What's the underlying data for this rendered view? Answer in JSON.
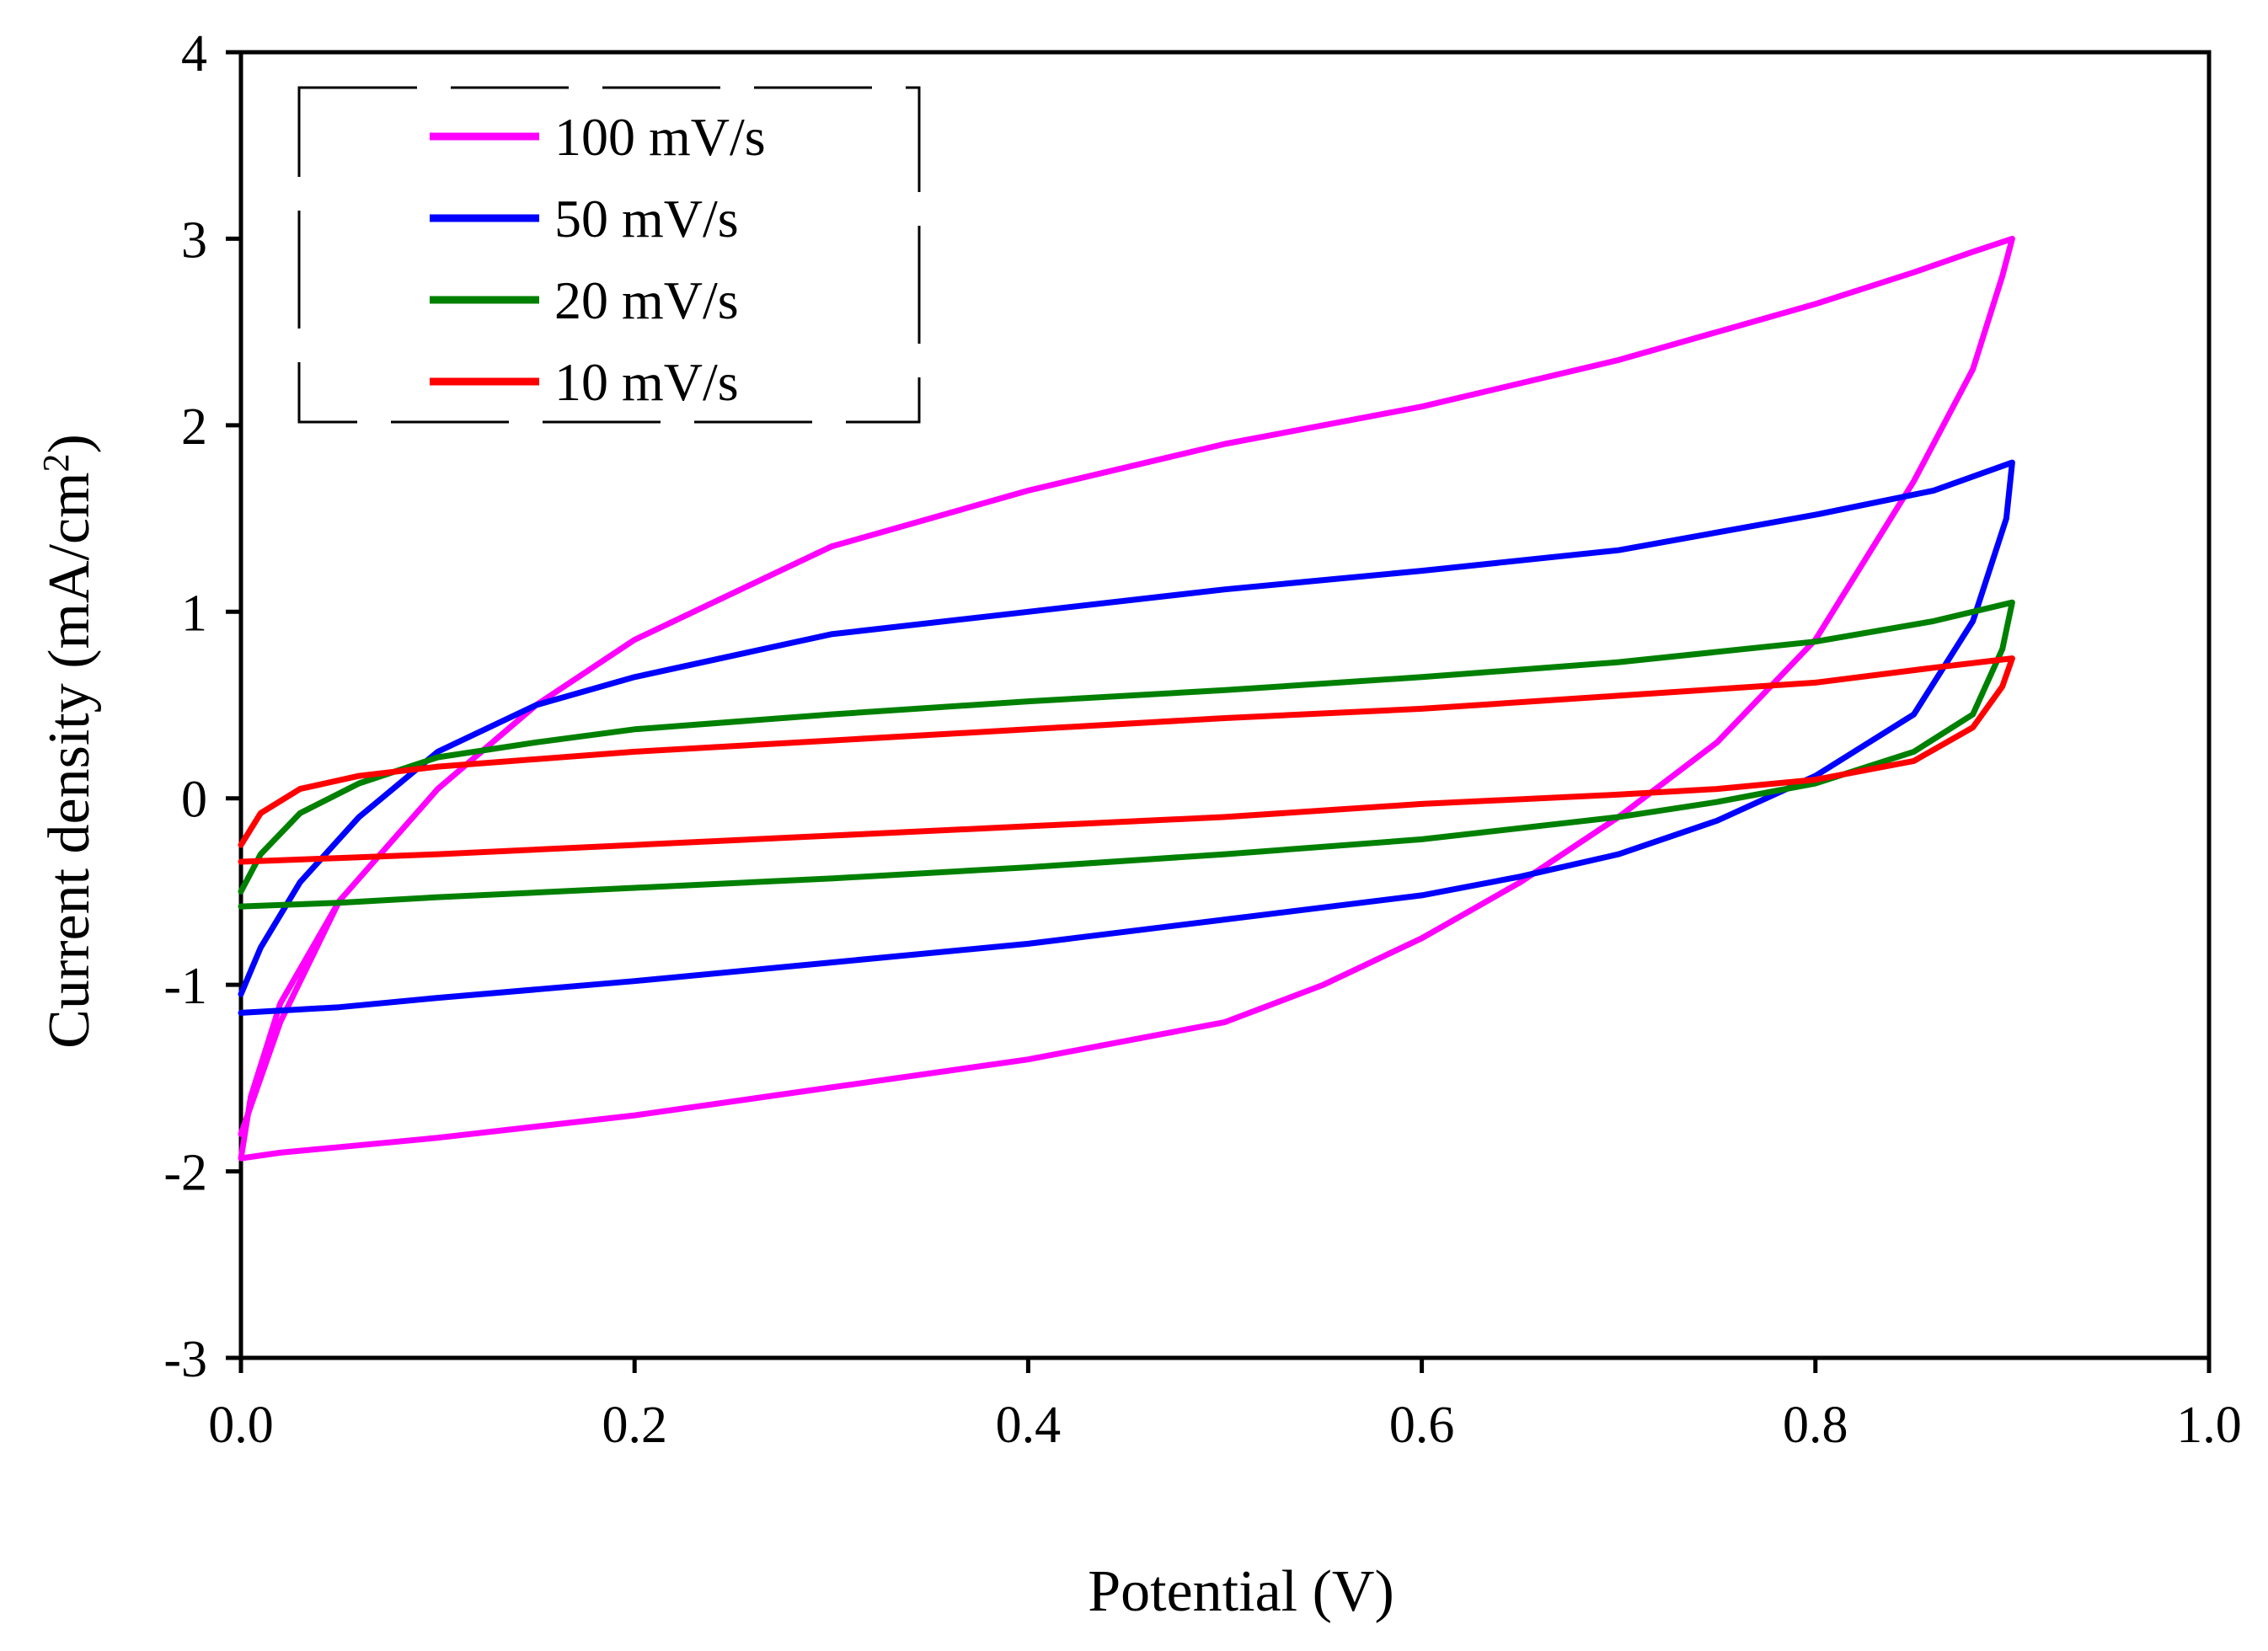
{
  "chart_data": {
    "type": "line",
    "xlabel": "Potential (V)",
    "ylabel": "Current density (mA/cm",
    "ylabel_superscript": "2",
    "ylabel_suffix": ")",
    "xlim": [
      0.0,
      1.0
    ],
    "ylim": [
      -3,
      4
    ],
    "x_ticks": [
      "0.0",
      "0.2",
      "0.4",
      "0.6",
      "0.8",
      "1.0"
    ],
    "y_ticks": [
      "4",
      "3",
      "2",
      "1",
      "0",
      "-1",
      "-2",
      "-3"
    ],
    "grid": false,
    "legend_position": "top-left",
    "series": [
      {
        "name": "100 mV/s",
        "color": "#ff00ff",
        "x": [
          0.0,
          0.02,
          0.05,
          0.1,
          0.15,
          0.2,
          0.3,
          0.4,
          0.5,
          0.6,
          0.7,
          0.8,
          0.85,
          0.88,
          0.9,
          0.895,
          0.88,
          0.85,
          0.8,
          0.75,
          0.7,
          0.65,
          0.6,
          0.55,
          0.5,
          0.4,
          0.3,
          0.2,
          0.1,
          0.05,
          0.02,
          0.0,
          0.0,
          0.005,
          0.02,
          0.05,
          0.1
        ],
        "y": [
          -1.8,
          -1.2,
          -0.55,
          0.05,
          0.5,
          0.85,
          1.35,
          1.65,
          1.9,
          2.1,
          2.35,
          2.65,
          2.82,
          2.93,
          3.0,
          2.8,
          2.3,
          1.7,
          0.85,
          0.3,
          -0.1,
          -0.45,
          -0.75,
          -1.0,
          -1.2,
          -1.4,
          -1.55,
          -1.7,
          -1.82,
          -1.87,
          -1.9,
          -1.93,
          -1.93,
          -1.6,
          -1.1,
          -0.55,
          0.05
        ]
      },
      {
        "name": "50 mV/s",
        "color": "#0000ff",
        "x": [
          0.0,
          0.01,
          0.03,
          0.06,
          0.1,
          0.15,
          0.2,
          0.3,
          0.4,
          0.5,
          0.6,
          0.7,
          0.8,
          0.86,
          0.9,
          0.897,
          0.88,
          0.85,
          0.8,
          0.75,
          0.7,
          0.65,
          0.6,
          0.5,
          0.4,
          0.3,
          0.2,
          0.1,
          0.05,
          0.0
        ],
        "y": [
          -1.05,
          -0.8,
          -0.45,
          -0.1,
          0.25,
          0.5,
          0.65,
          0.88,
          1.0,
          1.12,
          1.22,
          1.33,
          1.52,
          1.65,
          1.8,
          1.5,
          0.95,
          0.45,
          0.12,
          -0.12,
          -0.3,
          -0.42,
          -0.52,
          -0.65,
          -0.78,
          -0.88,
          -0.98,
          -1.07,
          -1.12,
          -1.15
        ]
      },
      {
        "name": "20 mV/s",
        "color": "#008000",
        "x": [
          0.0,
          0.01,
          0.03,
          0.06,
          0.1,
          0.15,
          0.2,
          0.3,
          0.4,
          0.5,
          0.6,
          0.7,
          0.8,
          0.86,
          0.9,
          0.895,
          0.88,
          0.85,
          0.8,
          0.75,
          0.7,
          0.6,
          0.5,
          0.4,
          0.3,
          0.2,
          0.1,
          0.05,
          0.0
        ],
        "y": [
          -0.5,
          -0.3,
          -0.08,
          0.08,
          0.22,
          0.3,
          0.37,
          0.45,
          0.52,
          0.58,
          0.65,
          0.73,
          0.84,
          0.95,
          1.05,
          0.8,
          0.45,
          0.25,
          0.08,
          -0.02,
          -0.1,
          -0.22,
          -0.3,
          -0.37,
          -0.43,
          -0.48,
          -0.53,
          -0.56,
          -0.58
        ]
      },
      {
        "name": "10 mV/s",
        "color": "#ff0000",
        "x": [
          0.0,
          0.01,
          0.03,
          0.06,
          0.1,
          0.2,
          0.3,
          0.4,
          0.5,
          0.6,
          0.7,
          0.8,
          0.86,
          0.9,
          0.895,
          0.88,
          0.85,
          0.8,
          0.75,
          0.7,
          0.6,
          0.5,
          0.4,
          0.3,
          0.2,
          0.1,
          0.05,
          0.0
        ],
        "y": [
          -0.25,
          -0.08,
          0.05,
          0.12,
          0.17,
          0.25,
          0.31,
          0.37,
          0.43,
          0.48,
          0.55,
          0.62,
          0.7,
          0.75,
          0.6,
          0.38,
          0.2,
          0.1,
          0.05,
          0.02,
          -0.03,
          -0.1,
          -0.15,
          -0.2,
          -0.25,
          -0.3,
          -0.32,
          -0.34
        ]
      }
    ]
  }
}
